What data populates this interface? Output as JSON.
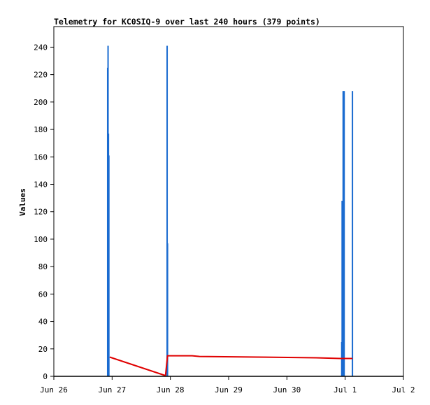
{
  "chart_data": {
    "type": "bar",
    "title": "Telemetry for KC0SIQ-9 over last 240 hours (379 points)",
    "ylabel": "Values",
    "xlabel": "",
    "ylim": [
      0,
      255
    ],
    "yticks": [
      0,
      20,
      40,
      60,
      80,
      100,
      120,
      140,
      160,
      180,
      200,
      220,
      240
    ],
    "xticks": [
      "Jun 26",
      "Jun 27",
      "Jun 28",
      "Jun 29",
      "Jun 30",
      "Jul 1",
      "Jul 2"
    ],
    "xlim": [
      "Jun 26",
      "Jul 2"
    ],
    "grid": false,
    "colors": {
      "bars": "#1a6bd0",
      "line": "#e00000",
      "baseline": "#000000"
    },
    "series": [
      {
        "type": "bar",
        "points": [
          {
            "x": "Jun 26 22:10",
            "value": 225
          },
          {
            "x": "Jun 26 22:20",
            "value": 241
          },
          {
            "x": "Jun 26 22:30",
            "value": 177
          },
          {
            "x": "Jun 26 22:40",
            "value": 161
          },
          {
            "x": "Jun 27 22:40",
            "value": 241
          },
          {
            "x": "Jun 27 22:50",
            "value": 97
          },
          {
            "x": "Jun 30 22:35",
            "value": 25
          },
          {
            "x": "Jun 30 22:45",
            "value": 128
          },
          {
            "x": "Jun 30 22:55",
            "value": 113
          },
          {
            "x": "Jun 30 23:10",
            "value": 208
          },
          {
            "x": "Jun 30 23:20",
            "value": 128
          },
          {
            "x": "Jun 30 23:35",
            "value": 208
          },
          {
            "x": "Jul 1 03:00",
            "value": 208
          }
        ]
      },
      {
        "type": "line",
        "points": [
          {
            "x": "Jun 26 23:00",
            "value": 14
          },
          {
            "x": "Jun 27 22:00",
            "value": 0.5
          },
          {
            "x": "Jun 27 22:50",
            "value": 15
          },
          {
            "x": "Jun 28 09:00",
            "value": 15
          },
          {
            "x": "Jun 28 12:00",
            "value": 14.5
          },
          {
            "x": "Jun 29 12:00",
            "value": 14
          },
          {
            "x": "Jun 30 12:00",
            "value": 13.5
          },
          {
            "x": "Jun 30 22:00",
            "value": 13
          },
          {
            "x": "Jul 1 03:00",
            "value": 13
          }
        ]
      }
    ]
  }
}
